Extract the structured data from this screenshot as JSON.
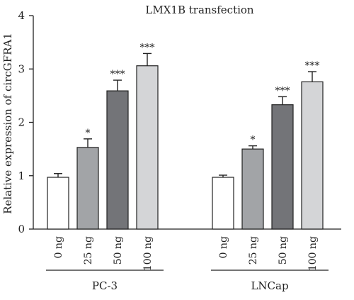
{
  "chart_data": {
    "type": "bar",
    "title": "LMX1B transfection",
    "ylabel": "Relative expression of circGFRA1",
    "xlabel": "",
    "ylim": [
      0,
      4
    ],
    "yticks": [
      "0",
      "1",
      "2",
      "3",
      "4"
    ],
    "groups": [
      {
        "name": "PC-3",
        "categories": [
          "0 ng",
          "25 ng",
          "50 ng",
          "100 ng"
        ],
        "values": [
          0.97,
          1.53,
          2.59,
          3.06
        ],
        "errors": [
          0.07,
          0.16,
          0.2,
          0.23
        ],
        "significance": [
          "",
          "*",
          "***",
          "***"
        ],
        "colors": [
          "#ffffff",
          "#a2a4a7",
          "#737478",
          "#d4d5d7"
        ]
      },
      {
        "name": "LNCap",
        "categories": [
          "0 ng",
          "25 ng",
          "50 ng",
          "100 ng"
        ],
        "values": [
          0.97,
          1.5,
          2.33,
          2.76
        ],
        "errors": [
          0.04,
          0.06,
          0.15,
          0.19
        ],
        "significance": [
          "",
          "*",
          "***",
          "***"
        ],
        "colors": [
          "#ffffff",
          "#a2a4a7",
          "#737478",
          "#d4d5d7"
        ]
      }
    ]
  }
}
